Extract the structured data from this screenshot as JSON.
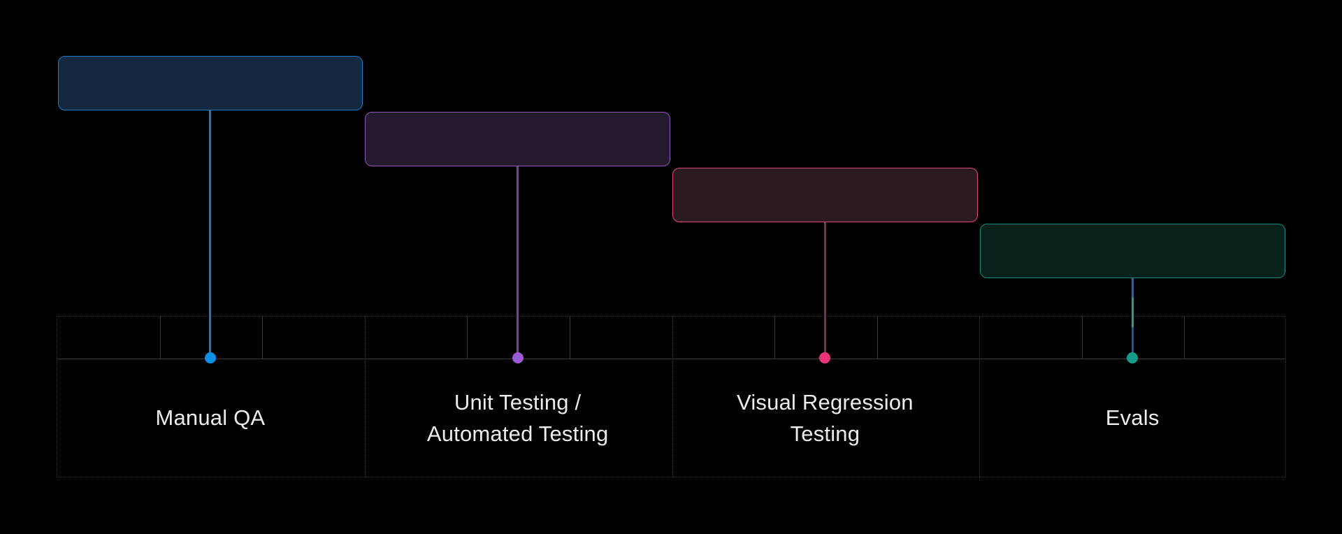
{
  "diagram": {
    "background": "#000000",
    "text_color": "#ececec",
    "grid": {
      "outer_border_color": "#3a3140",
      "section_divider_color": "#4a3a52",
      "cell_line_color": "#3a3a3a"
    },
    "sections": [
      {
        "id": "manual-qa",
        "label": "Manual QA",
        "label_lines": [
          "Manual QA"
        ],
        "box_fill": "#142840",
        "box_border": "#1e7ec8",
        "connector": {
          "type": "solid",
          "color": "#1878c8"
        },
        "dot_color": "#0f8ee8"
      },
      {
        "id": "unit-automated-testing",
        "label": "Unit Testing / Automated Testing",
        "label_lines": [
          "Unit Testing /",
          "Automated Testing"
        ],
        "box_fill": "#261a2f",
        "box_border": "#9156bd",
        "connector": {
          "type": "solid",
          "color": "#7a3f9e"
        },
        "dot_color": "#9b59d6"
      },
      {
        "id": "visual-regression-testing",
        "label": "Visual Regression Testing",
        "label_lines": [
          "Visual Regression",
          "Testing"
        ],
        "box_fill": "#2b1a21",
        "box_border": "#e0477f",
        "connector": {
          "type": "solid",
          "color": "#7e2b5e"
        },
        "dot_color": "#ea3379"
      },
      {
        "id": "evals",
        "label": "Evals",
        "label_lines": [
          "Evals"
        ],
        "box_fill": "#07211c",
        "box_border": "#1d8a7a",
        "connector": {
          "type": "segments",
          "stops": [
            [
              "#1565b8",
              24
            ],
            [
              "#1f9f8d",
              62
            ],
            [
              "#15559e",
              96
            ],
            [
              "#1f9f8d",
              100
            ]
          ]
        },
        "dot_color": "#189c8a"
      }
    ]
  }
}
